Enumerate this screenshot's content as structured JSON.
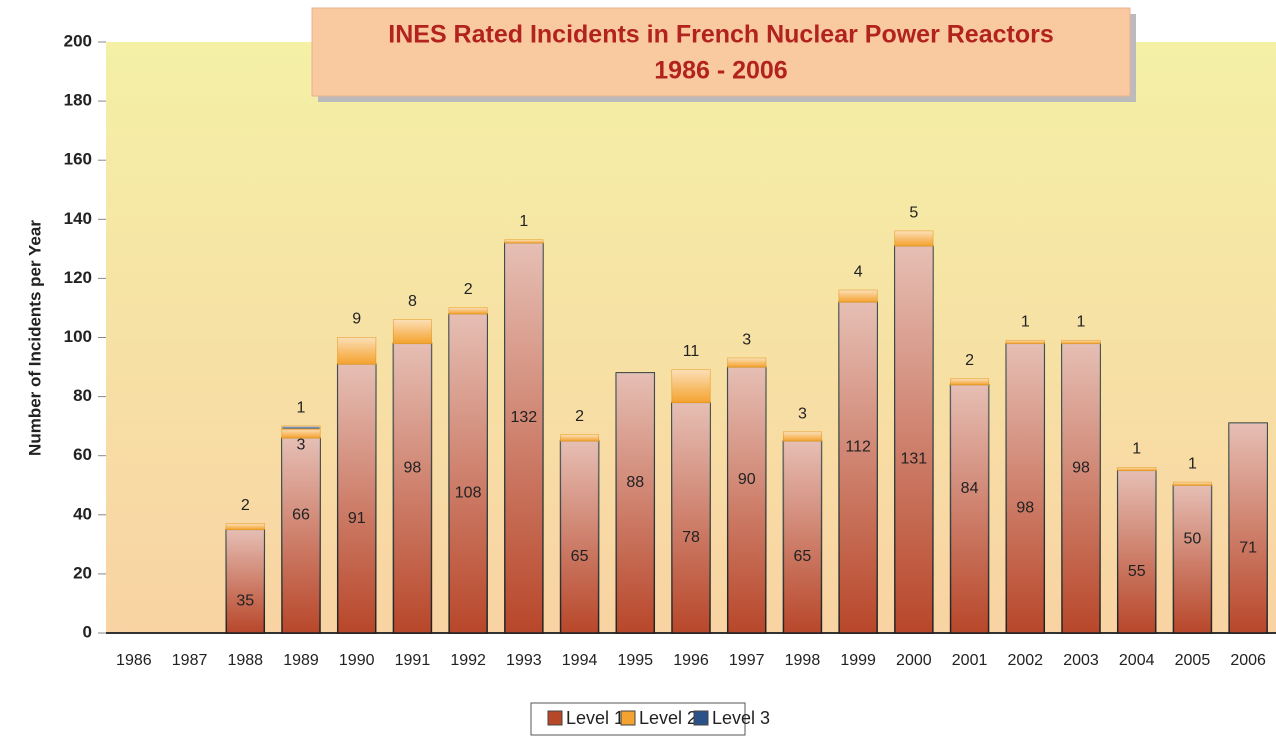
{
  "chart_data": {
    "type": "stacked-bar",
    "title": "INES Rated Incidents in French Nuclear Power Reactors",
    "subtitle": "1986 - 2006",
    "y_label": "Number of Incidents per Year",
    "categories": [
      "1986",
      "1987",
      "1988",
      "1989",
      "1990",
      "1991",
      "1992",
      "1993",
      "1994",
      "1995",
      "1996",
      "1997",
      "1998",
      "1999",
      "2000",
      "2001",
      "2002",
      "2003",
      "2004",
      "2005",
      "2006"
    ],
    "series": [
      {
        "name": "Level 1",
        "color": "#b8472a",
        "values": [
          null,
          null,
          35,
          66,
          91,
          98,
          108,
          132,
          65,
          88,
          78,
          90,
          65,
          112,
          131,
          84,
          98,
          98,
          55,
          50,
          71
        ]
      },
      {
        "name": "Level 2",
        "color": "#f5a330",
        "values": [
          null,
          null,
          2,
          3,
          9,
          8,
          2,
          1,
          2,
          null,
          11,
          3,
          3,
          4,
          5,
          2,
          1,
          1,
          1,
          1,
          null
        ]
      },
      {
        "name": "Level 3",
        "color": "#2b5189",
        "values": [
          null,
          null,
          null,
          1,
          null,
          null,
          null,
          null,
          null,
          null,
          null,
          null,
          null,
          null,
          null,
          null,
          null,
          null,
          null,
          null,
          null
        ]
      }
    ],
    "ylim": [
      0,
      200
    ],
    "yticks": [
      0,
      20,
      40,
      60,
      80,
      100,
      120,
      140,
      160,
      180,
      200
    ],
    "legend": "bottom"
  }
}
